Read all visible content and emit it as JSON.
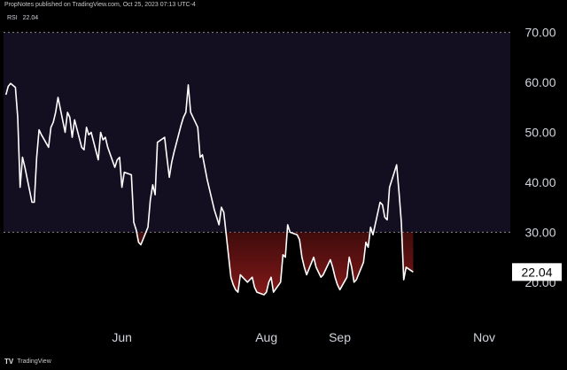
{
  "header": {
    "attribution": "PropNotes published on TradingView.com, Oct 25, 2023 07:13 UTC-4"
  },
  "footer": {
    "logo_mark": "TV",
    "brand": "TradingView"
  },
  "legend": {
    "indicator": "RSI",
    "value": "22.04"
  },
  "colors": {
    "background": "#000000",
    "band": "#130f20",
    "line": "#ffffff",
    "oversold_fill": "#8b1a1a",
    "dashed": "#8a8a8a"
  },
  "chart_data": {
    "type": "line",
    "title": "",
    "xlabel": "",
    "ylabel": "",
    "ylim": [
      12,
      74
    ],
    "yticks": [
      "20.00",
      "30.00",
      "40.00",
      "50.00",
      "60.00",
      "70.00"
    ],
    "ytick_values": [
      20,
      30,
      40,
      50,
      60,
      70
    ],
    "xticks": [
      {
        "label": "Jun",
        "date": "2023-06-01"
      },
      {
        "label": "Aug",
        "date": "2023-08-01"
      },
      {
        "label": "Sep",
        "date": "2023-09-01"
      },
      {
        "label": "Nov",
        "date": "2023-11-01"
      }
    ],
    "xlim": [
      "2023-04-12",
      "2023-11-12"
    ],
    "band": {
      "upper": 70,
      "lower": 30
    },
    "grid": false,
    "last_value": "22.04",
    "series": [
      {
        "values": [
          [
            "2023-04-13",
            57.5
          ],
          [
            "2023-04-14",
            59.2
          ],
          [
            "2023-04-15",
            59.8
          ],
          [
            "2023-04-17",
            59.0
          ],
          [
            "2023-04-18",
            53.0
          ],
          [
            "2023-04-19",
            39.0
          ],
          [
            "2023-04-20",
            45.0
          ],
          [
            "2023-04-21",
            43.0
          ],
          [
            "2023-04-24",
            36.0
          ],
          [
            "2023-04-25",
            36.0
          ],
          [
            "2023-04-26",
            45.0
          ],
          [
            "2023-04-27",
            50.5
          ],
          [
            "2023-04-28",
            49.5
          ],
          [
            "2023-05-01",
            47.0
          ],
          [
            "2023-05-02",
            51.0
          ],
          [
            "2023-05-03",
            52.0
          ],
          [
            "2023-05-04",
            54.0
          ],
          [
            "2023-05-05",
            57.0
          ],
          [
            "2023-05-08",
            50.0
          ],
          [
            "2023-05-09",
            54.0
          ],
          [
            "2023-05-10",
            53.0
          ],
          [
            "2023-05-11",
            49.0
          ],
          [
            "2023-05-12",
            52.5
          ],
          [
            "2023-05-15",
            47.0
          ],
          [
            "2023-05-16",
            46.5
          ],
          [
            "2023-05-17",
            51.0
          ],
          [
            "2023-05-18",
            49.5
          ],
          [
            "2023-05-19",
            50.0
          ],
          [
            "2023-05-22",
            44.5
          ],
          [
            "2023-05-23",
            50.0
          ],
          [
            "2023-05-24",
            48.5
          ],
          [
            "2023-05-25",
            49.0
          ],
          [
            "2023-05-26",
            47.0
          ],
          [
            "2023-05-29",
            43.0
          ],
          [
            "2023-05-30",
            44.5
          ],
          [
            "2023-05-31",
            45.0
          ],
          [
            "2023-06-01",
            39.0
          ],
          [
            "2023-06-02",
            42.0
          ],
          [
            "2023-06-05",
            41.5
          ],
          [
            "2023-06-06",
            32.0
          ],
          [
            "2023-06-07",
            30.5
          ],
          [
            "2023-06-08",
            28.0
          ],
          [
            "2023-06-09",
            27.5
          ],
          [
            "2023-06-12",
            31.0
          ],
          [
            "2023-06-13",
            36.5
          ],
          [
            "2023-06-14",
            39.5
          ],
          [
            "2023-06-15",
            37.5
          ],
          [
            "2023-06-16",
            48.0
          ],
          [
            "2023-06-19",
            49.0
          ],
          [
            "2023-06-20",
            45.0
          ],
          [
            "2023-06-21",
            41.0
          ],
          [
            "2023-06-22",
            44.0
          ],
          [
            "2023-06-23",
            46.0
          ],
          [
            "2023-06-26",
            51.5
          ],
          [
            "2023-06-27",
            53.0
          ],
          [
            "2023-06-28",
            54.0
          ],
          [
            "2023-06-29",
            59.5
          ],
          [
            "2023-06-30",
            54.0
          ],
          [
            "2023-07-03",
            51.0
          ],
          [
            "2023-07-04",
            45.0
          ],
          [
            "2023-07-05",
            45.5
          ],
          [
            "2023-07-06",
            43.0
          ],
          [
            "2023-07-07",
            40.5
          ],
          [
            "2023-07-10",
            34.5
          ],
          [
            "2023-07-11",
            33.0
          ],
          [
            "2023-07-12",
            31.5
          ],
          [
            "2023-07-13",
            35.0
          ],
          [
            "2023-07-14",
            34.0
          ],
          [
            "2023-07-17",
            21.0
          ],
          [
            "2023-07-18",
            19.5
          ],
          [
            "2023-07-19",
            18.5
          ],
          [
            "2023-07-20",
            18.0
          ],
          [
            "2023-07-21",
            21.5
          ],
          [
            "2023-07-24",
            20.0
          ],
          [
            "2023-07-25",
            20.5
          ],
          [
            "2023-07-26",
            21.0
          ],
          [
            "2023-07-27",
            19.0
          ],
          [
            "2023-07-28",
            18.0
          ],
          [
            "2023-07-31",
            17.5
          ],
          [
            "2023-08-01",
            18.0
          ],
          [
            "2023-08-02",
            20.0
          ],
          [
            "2023-08-03",
            21.0
          ],
          [
            "2023-08-04",
            18.0
          ],
          [
            "2023-08-07",
            20.0
          ],
          [
            "2023-08-08",
            25.5
          ],
          [
            "2023-08-09",
            25.0
          ],
          [
            "2023-08-10",
            31.5
          ],
          [
            "2023-08-11",
            30.0
          ],
          [
            "2023-08-14",
            29.5
          ],
          [
            "2023-08-15",
            28.5
          ],
          [
            "2023-08-16",
            25.0
          ],
          [
            "2023-08-17",
            23.0
          ],
          [
            "2023-08-18",
            21.5
          ],
          [
            "2023-08-21",
            25.0
          ],
          [
            "2023-08-22",
            23.0
          ],
          [
            "2023-08-23",
            22.0
          ],
          [
            "2023-08-24",
            21.0
          ],
          [
            "2023-08-25",
            21.5
          ],
          [
            "2023-08-28",
            24.5
          ],
          [
            "2023-08-29",
            23.0
          ],
          [
            "2023-08-30",
            21.0
          ],
          [
            "2023-08-31",
            19.5
          ],
          [
            "2023-09-01",
            18.5
          ],
          [
            "2023-09-04",
            21.0
          ],
          [
            "2023-09-05",
            25.0
          ],
          [
            "2023-09-06",
            23.0
          ],
          [
            "2023-09-07",
            20.0
          ],
          [
            "2023-09-08",
            20.5
          ],
          [
            "2023-09-11",
            24.0
          ],
          [
            "2023-09-12",
            28.0
          ],
          [
            "2023-09-13",
            27.0
          ],
          [
            "2023-09-14",
            31.0
          ],
          [
            "2023-09-15",
            29.5
          ],
          [
            "2023-09-18",
            36.0
          ],
          [
            "2023-09-19",
            35.5
          ],
          [
            "2023-09-20",
            33.0
          ],
          [
            "2023-09-21",
            32.5
          ],
          [
            "2023-09-22",
            39.0
          ],
          [
            "2023-09-25",
            43.5
          ],
          [
            "2023-09-26",
            38.0
          ],
          [
            "2023-09-27",
            32.0
          ],
          [
            "2023-09-28",
            20.5
          ],
          [
            "2023-09-29",
            23.0
          ],
          [
            "2023-10-02",
            22.04
          ]
        ]
      }
    ]
  }
}
